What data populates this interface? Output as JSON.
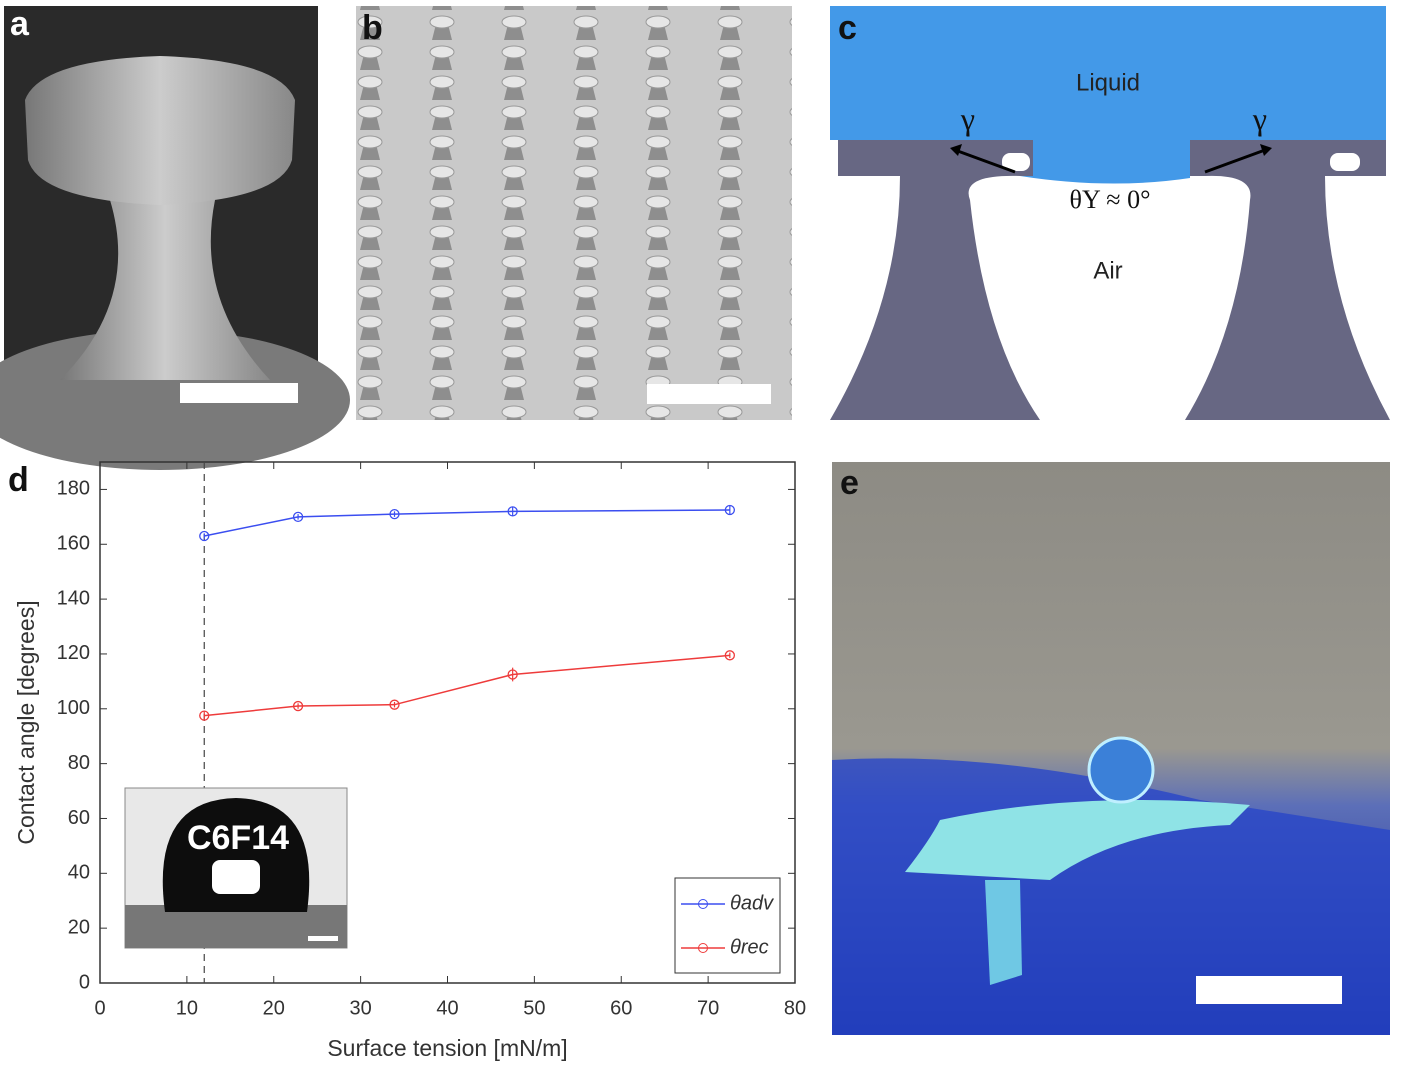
{
  "panels": {
    "a": {
      "label": "a"
    },
    "b": {
      "label": "b"
    },
    "c": {
      "label": "c",
      "liquid": "Liquid",
      "air": "Air",
      "gamma_left": "γ",
      "gamma_right": "γ",
      "angle": "θY ≈ 0°"
    },
    "e": {
      "label": "e"
    }
  },
  "chart_data": {
    "type": "line",
    "panel_label": "d",
    "xlabel": "Surface tension [mN/m]",
    "ylabel": "Contact angle [degrees]",
    "xlim": [
      0,
      80
    ],
    "xticks": [
      0,
      10,
      20,
      30,
      40,
      50,
      60,
      70,
      80
    ],
    "ylim": [
      0,
      190
    ],
    "yticks": [
      0,
      20,
      40,
      60,
      80,
      100,
      120,
      140,
      160,
      180
    ],
    "x": [
      12,
      22.8,
      33.9,
      47.5,
      72.5
    ],
    "series": [
      {
        "name": "θadv",
        "color": "#3b4ef0",
        "values": [
          163,
          170,
          171,
          172,
          172.5
        ],
        "errors": [
          1,
          1,
          1,
          1.5,
          1.5
        ]
      },
      {
        "name": "θrec",
        "color": "#ee3b3b",
        "values": [
          97.5,
          101,
          101.5,
          112.5,
          119.5
        ],
        "errors": [
          1.5,
          1,
          1,
          2.5,
          1
        ]
      }
    ],
    "vline": 12,
    "inset_label": "C6F14",
    "legend": "lower right"
  }
}
